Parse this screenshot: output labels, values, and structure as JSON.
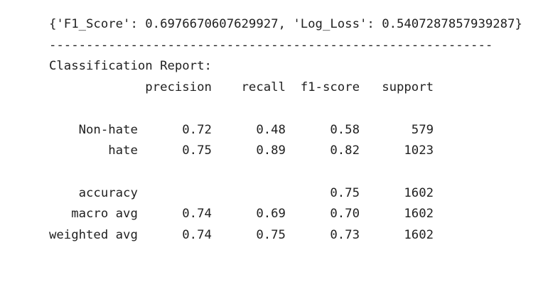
{
  "metrics_line": "{'F1_Score': 0.6976670607629927, 'Log_Loss': 0.5407287857939287}",
  "separator": "------------------------------------------------------------",
  "report_title": "Classification Report:",
  "report": {
    "columns": [
      "precision",
      "recall",
      "f1-score",
      "support"
    ],
    "classes": [
      {
        "label": "Non-hate",
        "precision": "0.72",
        "recall": "0.48",
        "f1": "0.58",
        "support": "579"
      },
      {
        "label": "hate",
        "precision": "0.75",
        "recall": "0.89",
        "f1": "0.82",
        "support": "1023"
      }
    ],
    "accuracy": {
      "label": "accuracy",
      "f1": "0.75",
      "support": "1602"
    },
    "averages": [
      {
        "label": "macro avg",
        "precision": "0.74",
        "recall": "0.69",
        "f1": "0.70",
        "support": "1602"
      },
      {
        "label": "weighted avg",
        "precision": "0.74",
        "recall": "0.75",
        "f1": "0.73",
        "support": "1602"
      }
    ]
  }
}
